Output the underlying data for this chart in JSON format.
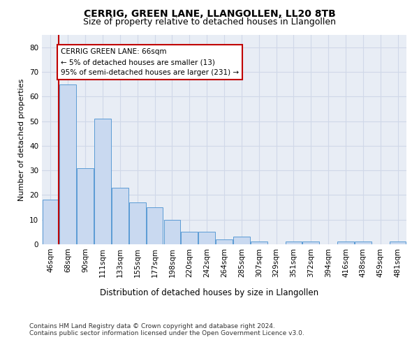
{
  "title1": "CERRIG, GREEN LANE, LLANGOLLEN, LL20 8TB",
  "title2": "Size of property relative to detached houses in Llangollen",
  "xlabel": "Distribution of detached houses by size in Llangollen",
  "ylabel": "Number of detached properties",
  "categories": [
    "46sqm",
    "68sqm",
    "90sqm",
    "111sqm",
    "133sqm",
    "155sqm",
    "177sqm",
    "198sqm",
    "220sqm",
    "242sqm",
    "264sqm",
    "285sqm",
    "307sqm",
    "329sqm",
    "351sqm",
    "372sqm",
    "394sqm",
    "416sqm",
    "438sqm",
    "459sqm",
    "481sqm"
  ],
  "values": [
    18,
    65,
    31,
    51,
    23,
    17,
    15,
    10,
    5,
    5,
    2,
    3,
    1,
    0,
    1,
    1,
    0,
    1,
    1,
    0,
    1
  ],
  "bar_color": "#c9d9f0",
  "bar_edge_color": "#5b9bd5",
  "annotation_box_text": [
    "CERRIG GREEN LANE: 66sqm",
    "← 5% of detached houses are smaller (13)",
    "95% of semi-detached houses are larger (231) →"
  ],
  "annotation_box_color": "#ffffff",
  "annotation_box_edge": "#c00000",
  "ylim": [
    0,
    85
  ],
  "yticks": [
    0,
    10,
    20,
    30,
    40,
    50,
    60,
    70,
    80
  ],
  "grid_color": "#d0d8e8",
  "plot_bg_color": "#e8edf5",
  "footer": "Contains HM Land Registry data © Crown copyright and database right 2024.\nContains public sector information licensed under the Open Government Licence v3.0.",
  "title1_fontsize": 10,
  "title2_fontsize": 9,
  "xlabel_fontsize": 8.5,
  "ylabel_fontsize": 8,
  "tick_fontsize": 7.5,
  "footer_fontsize": 6.5,
  "ann_fontsize": 7.5
}
